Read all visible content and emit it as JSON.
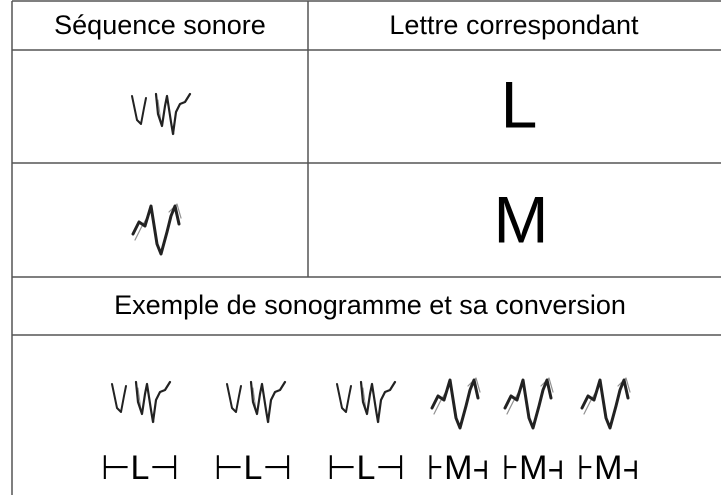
{
  "header": {
    "columns": [
      "Séquence sonore",
      "Lettre correspondant"
    ]
  },
  "rows": [
    {
      "letter": "L"
    },
    {
      "letter": "M"
    }
  ],
  "example": {
    "title": "Exemple de sonogramme et sa conversion",
    "labels": [
      "⊢L⊣",
      "⊢L⊣",
      "⊢L⊣",
      "⊦M⫞",
      "⊦M⫞",
      "⊦M⫞"
    ]
  }
}
